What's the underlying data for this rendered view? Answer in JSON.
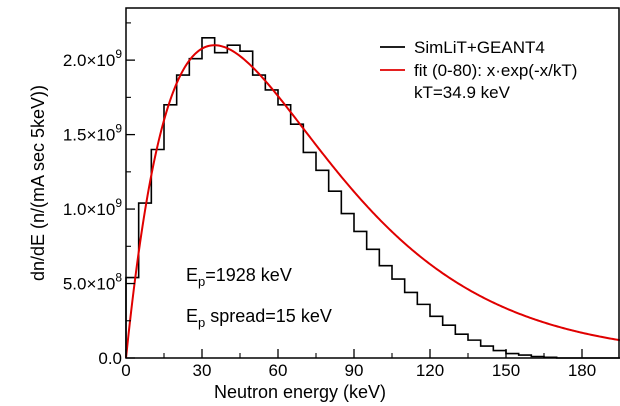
{
  "chart_data": {
    "type": "line",
    "title": "",
    "xlabel": "Neutron energy (keV)",
    "ylabel": "dn/dE (n/(mA sec 5keV))",
    "xlim": [
      0,
      195
    ],
    "ylim": [
      0,
      2350000000.0
    ],
    "grid": false,
    "legend_position": "top-right",
    "x_ticks": [
      {
        "value": 0,
        "label": "0"
      },
      {
        "value": 30,
        "label": "30"
      },
      {
        "value": 60,
        "label": "60"
      },
      {
        "value": 90,
        "label": "90"
      },
      {
        "value": 120,
        "label": "120"
      },
      {
        "value": 150,
        "label": "150"
      },
      {
        "value": 180,
        "label": "180"
      }
    ],
    "y_ticks": [
      {
        "value": 0,
        "mantissa": "0.0",
        "exponent": ""
      },
      {
        "value": 500000000.0,
        "mantissa": "5.0×10",
        "exponent": "8"
      },
      {
        "value": 1000000000.0,
        "mantissa": "1.0×10",
        "exponent": "9"
      },
      {
        "value": 1500000000.0,
        "mantissa": "1.5×10",
        "exponent": "9"
      },
      {
        "value": 2000000000.0,
        "mantissa": "2.0×10",
        "exponent": "9"
      }
    ],
    "series": [
      {
        "name": "SimLiT+GEANT4",
        "style": "step",
        "color": "#000000",
        "bin_width": 5,
        "bin_starts": [
          0,
          5,
          10,
          15,
          20,
          25,
          30,
          35,
          40,
          45,
          50,
          55,
          60,
          65,
          70,
          75,
          80,
          85,
          90,
          95,
          100,
          105,
          110,
          115,
          120,
          125,
          130,
          135,
          140,
          145,
          150,
          155,
          160,
          165,
          170,
          175,
          180,
          185,
          190
        ],
        "values": [
          540000000.0,
          1040000000.0,
          1400000000.0,
          1700000000.0,
          1900000000.0,
          2010000000.0,
          2150000000.0,
          2050000000.0,
          2100000000.0,
          2060000000.0,
          1900000000.0,
          1800000000.0,
          1700000000.0,
          1570000000.0,
          1380000000.0,
          1260000000.0,
          1120000000.0,
          970000000.0,
          850000000.0,
          730000000.0,
          620000000.0,
          530000000.0,
          440000000.0,
          360000000.0,
          280000000.0,
          220000000.0,
          160000000.0,
          120000000.0,
          80000000.0,
          50000000.0,
          30000000.0,
          20000000.0,
          10000000.0,
          5000000.0,
          0,
          0,
          0,
          0,
          0
        ]
      },
      {
        "name": "fit (0-80): x·exp(-x/kT)",
        "name_line2": "kT=34.9 keV",
        "style": "line",
        "color": "#e00000",
        "function": "A*x*exp(-x/kT)",
        "kT": 34.9,
        "peak_value": 2100000000.0
      }
    ],
    "annotations": [
      {
        "base": "E",
        "sub": "p",
        "rest": "=1928 keV"
      },
      {
        "base": "E",
        "sub": "p",
        "rest": " spread=15 keV"
      }
    ]
  }
}
